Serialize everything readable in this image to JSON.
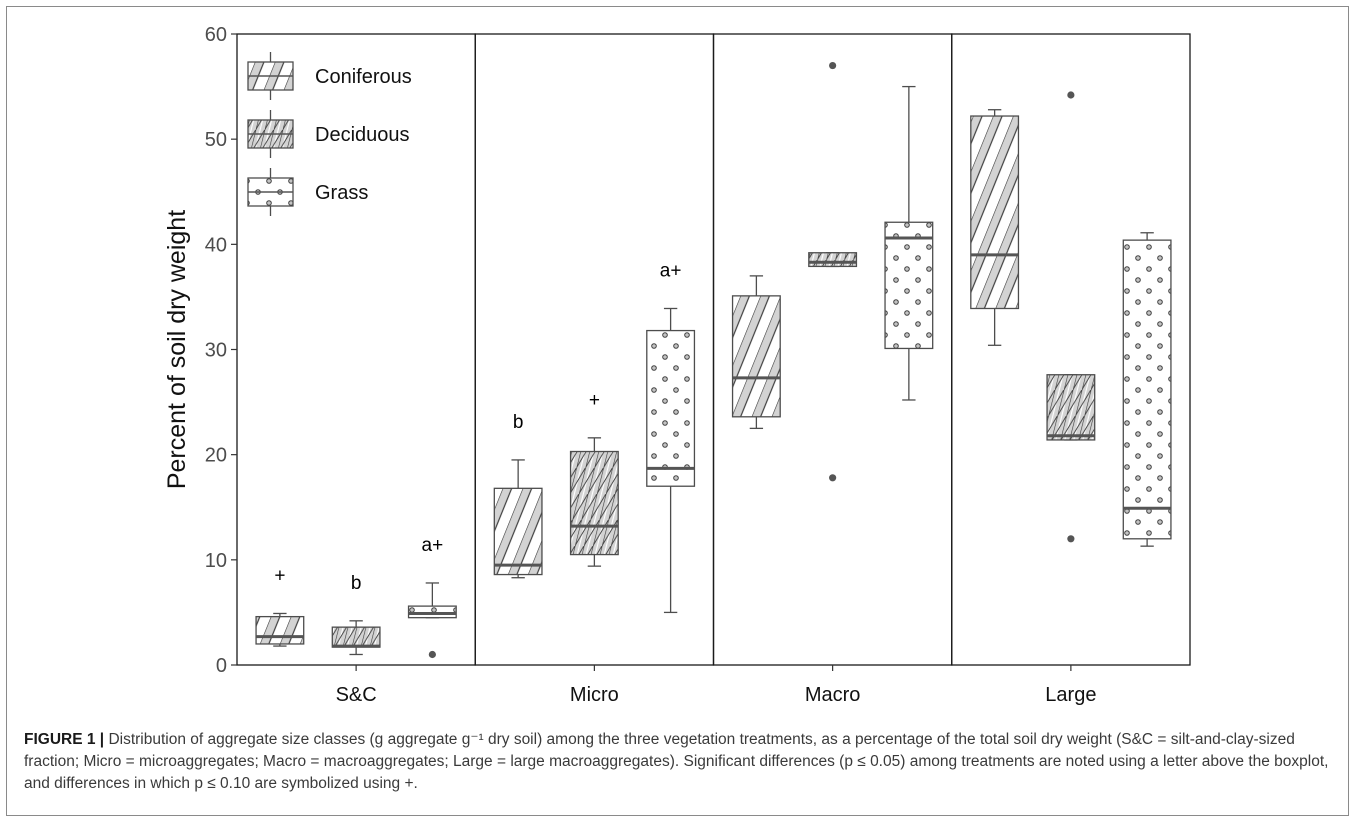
{
  "chart_data": {
    "type": "box",
    "ylabel": "Percent of soil dry weight",
    "xlabel": "",
    "ylim": [
      0,
      60
    ],
    "yticks": [
      0,
      10,
      20,
      30,
      40,
      50,
      60
    ],
    "grid": false,
    "legend": {
      "placement": "top-left",
      "entries": [
        {
          "name": "Coniferous",
          "pattern": "diagonal-hatch"
        },
        {
          "name": "Deciduous",
          "pattern": "cross-hatch"
        },
        {
          "name": "Grass",
          "pattern": "dots"
        }
      ]
    },
    "panels": [
      {
        "label": "S&C",
        "boxes": [
          {
            "series": "Coniferous",
            "whisker_low": 1.8,
            "q1": 2.0,
            "median": 2.7,
            "q3": 4.6,
            "whisker_high": 4.9,
            "outliers": [],
            "annotation": "+"
          },
          {
            "series": "Deciduous",
            "whisker_low": 1.0,
            "q1": 1.7,
            "median": 1.8,
            "q3": 3.6,
            "whisker_high": 4.2,
            "outliers": [],
            "annotation": "b"
          },
          {
            "series": "Grass",
            "whisker_low": 4.5,
            "q1": 4.5,
            "median": 4.9,
            "q3": 5.6,
            "whisker_high": 7.8,
            "outliers": [
              1.0
            ],
            "annotation": "a+"
          }
        ]
      },
      {
        "label": "Micro",
        "boxes": [
          {
            "series": "Coniferous",
            "whisker_low": 8.3,
            "q1": 8.6,
            "median": 9.5,
            "q3": 16.8,
            "whisker_high": 19.5,
            "outliers": [],
            "annotation": "b"
          },
          {
            "series": "Deciduous",
            "whisker_low": 9.4,
            "q1": 10.5,
            "median": 13.2,
            "q3": 20.3,
            "whisker_high": 21.6,
            "outliers": [],
            "annotation": "+"
          },
          {
            "series": "Grass",
            "whisker_low": 5.0,
            "q1": 17.0,
            "median": 18.7,
            "q3": 31.8,
            "whisker_high": 33.9,
            "outliers": [],
            "annotation": "a+"
          }
        ]
      },
      {
        "label": "Macro",
        "boxes": [
          {
            "series": "Coniferous",
            "whisker_low": 22.5,
            "q1": 23.6,
            "median": 27.3,
            "q3": 35.1,
            "whisker_high": 37.0,
            "outliers": [],
            "annotation": ""
          },
          {
            "series": "Deciduous",
            "whisker_low": 37.9,
            "q1": 37.9,
            "median": 38.3,
            "q3": 39.2,
            "whisker_high": 39.2,
            "outliers": [
              17.8,
              57.0
            ],
            "annotation": ""
          },
          {
            "series": "Grass",
            "whisker_low": 25.2,
            "q1": 30.1,
            "median": 40.6,
            "q3": 42.1,
            "whisker_high": 55.0,
            "outliers": [],
            "annotation": ""
          }
        ]
      },
      {
        "label": "Large",
        "boxes": [
          {
            "series": "Coniferous",
            "whisker_low": 30.4,
            "q1": 33.9,
            "median": 39.0,
            "q3": 52.2,
            "whisker_high": 52.8,
            "outliers": [],
            "annotation": ""
          },
          {
            "series": "Deciduous",
            "whisker_low": 21.4,
            "q1": 21.4,
            "median": 21.8,
            "q3": 27.6,
            "whisker_high": 27.6,
            "outliers": [
              12.0,
              54.2
            ],
            "annotation": ""
          },
          {
            "series": "Grass",
            "whisker_low": 11.3,
            "q1": 12.0,
            "median": 14.9,
            "q3": 40.4,
            "whisker_high": 41.1,
            "outliers": [],
            "annotation": ""
          }
        ]
      }
    ]
  },
  "caption": {
    "label": "FIGURE 1 |",
    "text": "Distribution of aggregate size classes (g aggregate g⁻¹ dry soil) among the three vegetation treatments, as a percentage of the total soil dry weight (S&C = silt-and-clay-sized fraction; Micro = microaggregates; Macro = macroaggregates; Large = large macroaggregates). Significant differences (p ≤ 0.05) among treatments are noted using a letter above the boxplot, and differences in which p ≤ 0.10 are symbolized using +."
  },
  "colors": {
    "fill": "#d3d3d3",
    "stroke": "#4d4d4d",
    "median": "#555555",
    "text": "#000000",
    "axis_text": "#4d4d4d"
  }
}
